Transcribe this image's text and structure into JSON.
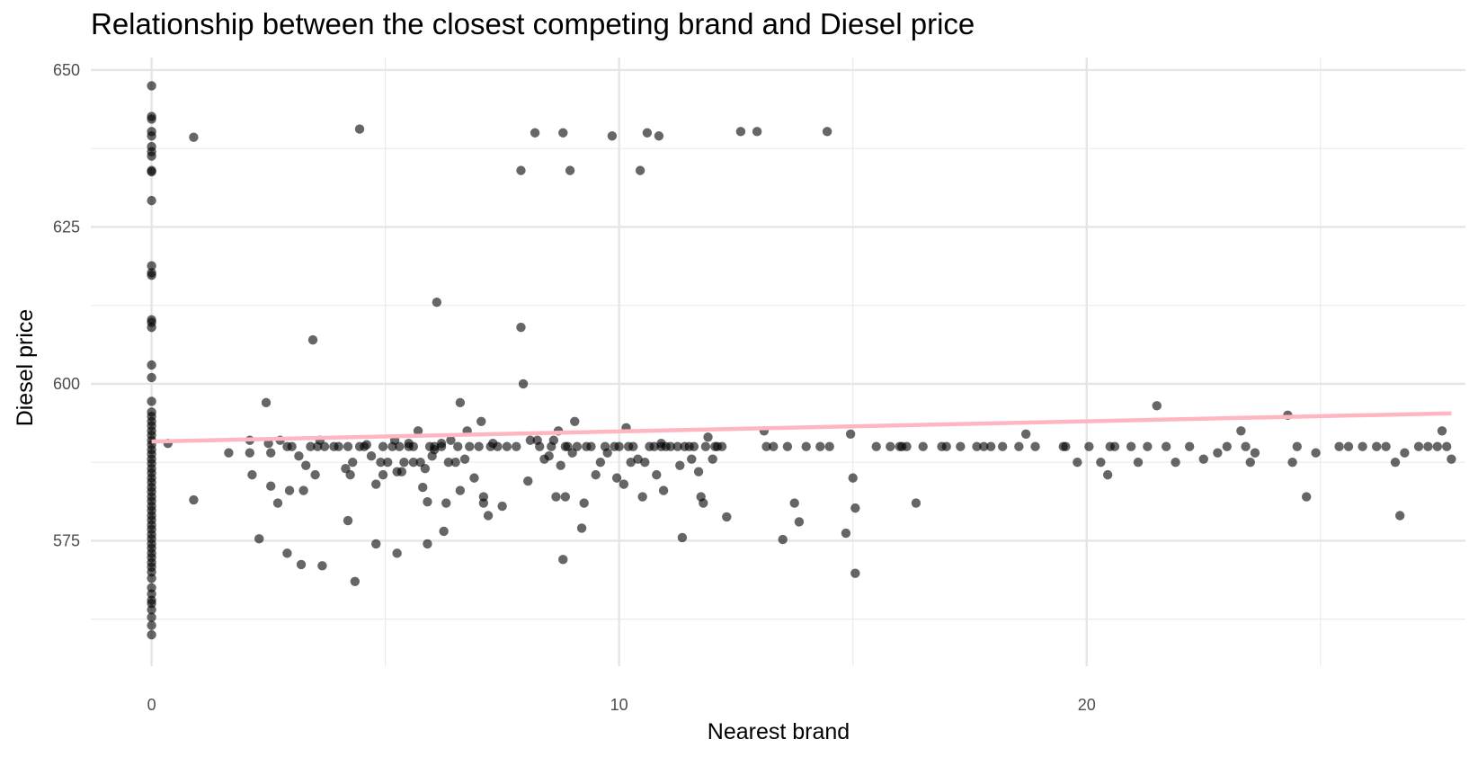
{
  "chart_data": {
    "type": "scatter",
    "title": "Relationship between the closest competing brand and Diesel price",
    "xlabel": "Nearest brand",
    "ylabel": "Diesel price",
    "xlim": [
      -1.3,
      28.1
    ],
    "ylim": [
      555,
      652
    ],
    "x_ticks": [
      0,
      10,
      20
    ],
    "x_tick_labels": [
      "0",
      "10",
      "20"
    ],
    "x_minor_ticks": [
      5,
      15,
      25
    ],
    "y_ticks": [
      575,
      600,
      625,
      650
    ],
    "y_tick_labels": [
      "575",
      "600",
      "625",
      "650"
    ],
    "y_minor_ticks": [
      562.5,
      587.5,
      612.5,
      637.5
    ],
    "grid": true,
    "point_color": "#000000",
    "point_opacity": 0.6,
    "trend_line": {
      "x": [
        0,
        27.8
      ],
      "y": [
        590.8,
        595.3
      ],
      "color": "#FFB6C1"
    },
    "points": [
      [
        0,
        647.5
      ],
      [
        0,
        642.6
      ],
      [
        0,
        642.2
      ],
      [
        0,
        640.2
      ],
      [
        0,
        639.5
      ],
      [
        0,
        637.8
      ],
      [
        0,
        637.0
      ],
      [
        0,
        636.3
      ],
      [
        0,
        634.0
      ],
      [
        0,
        633.8
      ],
      [
        0,
        629.2
      ],
      [
        0,
        618.8
      ],
      [
        0,
        617.7
      ],
      [
        0,
        617.3
      ],
      [
        0,
        610.2
      ],
      [
        0,
        609.8
      ],
      [
        0,
        609.0
      ],
      [
        0,
        603.0
      ],
      [
        0,
        601.0
      ],
      [
        0,
        597.2
      ],
      [
        0,
        595.5
      ],
      [
        0,
        594.8
      ],
      [
        0,
        594.0
      ],
      [
        0,
        593.3
      ],
      [
        0,
        592.5
      ],
      [
        0,
        591.8
      ],
      [
        0,
        591.0
      ],
      [
        0,
        590.3
      ],
      [
        0,
        589.5
      ],
      [
        0,
        588.8
      ],
      [
        0,
        588.0
      ],
      [
        0,
        587.3
      ],
      [
        0,
        586.5
      ],
      [
        0,
        585.8
      ],
      [
        0,
        585.0
      ],
      [
        0,
        584.3
      ],
      [
        0,
        583.5
      ],
      [
        0,
        582.8
      ],
      [
        0,
        582.0
      ],
      [
        0,
        581.3
      ],
      [
        0,
        580.5
      ],
      [
        0,
        579.8
      ],
      [
        0,
        579.0
      ],
      [
        0,
        578.3
      ],
      [
        0,
        577.5
      ],
      [
        0,
        576.8
      ],
      [
        0,
        576.0
      ],
      [
        0,
        575.3
      ],
      [
        0,
        574.5
      ],
      [
        0,
        573.8
      ],
      [
        0,
        573.0
      ],
      [
        0,
        572.3
      ],
      [
        0,
        571.5
      ],
      [
        0,
        570.8
      ],
      [
        0,
        570.0
      ],
      [
        0,
        569.0
      ],
      [
        0,
        567.5
      ],
      [
        0,
        566.5
      ],
      [
        0,
        565.5
      ],
      [
        0,
        565.0
      ],
      [
        0,
        564.0
      ],
      [
        0,
        562.8
      ],
      [
        0,
        561.5
      ],
      [
        0,
        560.0
      ],
      [
        0.35,
        590.5
      ],
      [
        0.9,
        639.3
      ],
      [
        0.9,
        581.5
      ],
      [
        1.65,
        589.0
      ],
      [
        2.1,
        591.0
      ],
      [
        2.1,
        589.0
      ],
      [
        2.15,
        585.5
      ],
      [
        2.3,
        575.3
      ],
      [
        2.45,
        597.0
      ],
      [
        2.5,
        590.5
      ],
      [
        2.55,
        589.0
      ],
      [
        2.55,
        583.7
      ],
      [
        2.7,
        581.0
      ],
      [
        2.75,
        591.0
      ],
      [
        2.9,
        590.0
      ],
      [
        2.9,
        573.0
      ],
      [
        2.95,
        583.0
      ],
      [
        3.0,
        590.0
      ],
      [
        3.15,
        588.5
      ],
      [
        3.2,
        571.2
      ],
      [
        3.25,
        583.0
      ],
      [
        3.3,
        587.0
      ],
      [
        3.4,
        590.0
      ],
      [
        3.45,
        607.0
      ],
      [
        3.5,
        585.5
      ],
      [
        3.55,
        590.0
      ],
      [
        3.6,
        591.0
      ],
      [
        3.65,
        571.0
      ],
      [
        3.7,
        590.0
      ],
      [
        3.9,
        590.0
      ],
      [
        4.0,
        590.0
      ],
      [
        4.15,
        586.5
      ],
      [
        4.2,
        590.0
      ],
      [
        4.2,
        578.2
      ],
      [
        4.25,
        585.5
      ],
      [
        4.3,
        587.5
      ],
      [
        4.35,
        568.5
      ],
      [
        4.45,
        590.0
      ],
      [
        4.55,
        590.0
      ],
      [
        4.6,
        590.3
      ],
      [
        4.45,
        640.6
      ],
      [
        4.7,
        588.5
      ],
      [
        4.8,
        584.0
      ],
      [
        4.8,
        574.5
      ],
      [
        4.9,
        587.5
      ],
      [
        4.95,
        590.0
      ],
      [
        4.95,
        585.5
      ],
      [
        5.05,
        587.5
      ],
      [
        5.15,
        590.0
      ],
      [
        5.2,
        591.0
      ],
      [
        5.25,
        586.0
      ],
      [
        5.25,
        573.0
      ],
      [
        5.3,
        590.0
      ],
      [
        5.35,
        586.0
      ],
      [
        5.4,
        587.5
      ],
      [
        5.5,
        590.0
      ],
      [
        5.5,
        590.5
      ],
      [
        5.6,
        587.5
      ],
      [
        5.6,
        590.0
      ],
      [
        5.7,
        592.5
      ],
      [
        5.75,
        587.5
      ],
      [
        5.8,
        583.5
      ],
      [
        5.85,
        586.5
      ],
      [
        5.9,
        581.2
      ],
      [
        5.9,
        574.5
      ],
      [
        5.95,
        590.0
      ],
      [
        6.0,
        588.5
      ],
      [
        6.05,
        590.0
      ],
      [
        6.05,
        589.5
      ],
      [
        6.1,
        613.0
      ],
      [
        6.2,
        590.0
      ],
      [
        6.2,
        590.5
      ],
      [
        6.25,
        576.5
      ],
      [
        6.3,
        581.0
      ],
      [
        6.35,
        587.5
      ],
      [
        6.4,
        591.0
      ],
      [
        6.5,
        587.5
      ],
      [
        6.55,
        590.0
      ],
      [
        6.6,
        597.0
      ],
      [
        6.6,
        583.0
      ],
      [
        6.7,
        588.0
      ],
      [
        6.75,
        592.5
      ],
      [
        6.8,
        590.0
      ],
      [
        6.9,
        585.0
      ],
      [
        7.0,
        590.0
      ],
      [
        7.05,
        594.0
      ],
      [
        7.1,
        582.0
      ],
      [
        7.1,
        581.0
      ],
      [
        7.2,
        579.0
      ],
      [
        7.25,
        590.0
      ],
      [
        7.3,
        590.5
      ],
      [
        7.4,
        590.0
      ],
      [
        7.5,
        580.5
      ],
      [
        7.6,
        590.0
      ],
      [
        7.8,
        590.0
      ],
      [
        7.9,
        609.0
      ],
      [
        7.9,
        634.0
      ],
      [
        7.95,
        600.0
      ],
      [
        8.05,
        584.5
      ],
      [
        8.1,
        591.0
      ],
      [
        8.2,
        640.0
      ],
      [
        8.25,
        591.0
      ],
      [
        8.3,
        590.0
      ],
      [
        8.4,
        588.0
      ],
      [
        8.5,
        588.5
      ],
      [
        8.55,
        590.0
      ],
      [
        8.6,
        591.0
      ],
      [
        8.65,
        582.0
      ],
      [
        8.7,
        592.5
      ],
      [
        8.75,
        587.0
      ],
      [
        8.8,
        640.0
      ],
      [
        8.8,
        572.0
      ],
      [
        8.85,
        590.0
      ],
      [
        8.85,
        582.0
      ],
      [
        8.9,
        590.0
      ],
      [
        8.95,
        634.0
      ],
      [
        9.0,
        589.0
      ],
      [
        9.05,
        594.0
      ],
      [
        9.1,
        590.0
      ],
      [
        9.2,
        577.0
      ],
      [
        9.25,
        581.0
      ],
      [
        9.3,
        590.0
      ],
      [
        9.4,
        590.0
      ],
      [
        9.5,
        585.5
      ],
      [
        9.6,
        587.5
      ],
      [
        9.7,
        590.0
      ],
      [
        9.75,
        589.0
      ],
      [
        9.85,
        639.5
      ],
      [
        9.9,
        590.0
      ],
      [
        9.95,
        585.0
      ],
      [
        10.0,
        590.0
      ],
      [
        10.1,
        584.0
      ],
      [
        10.15,
        593.0
      ],
      [
        10.2,
        590.0
      ],
      [
        10.25,
        587.5
      ],
      [
        10.3,
        590.0
      ],
      [
        10.4,
        588.0
      ],
      [
        10.45,
        634.0
      ],
      [
        10.5,
        582.0
      ],
      [
        10.55,
        587.5
      ],
      [
        10.6,
        640.0
      ],
      [
        10.65,
        590.0
      ],
      [
        10.75,
        590.0
      ],
      [
        10.8,
        585.5
      ],
      [
        10.85,
        639.5
      ],
      [
        10.9,
        590.0
      ],
      [
        10.9,
        590.5
      ],
      [
        10.95,
        583.0
      ],
      [
        11.0,
        590.0
      ],
      [
        11.1,
        590.0
      ],
      [
        11.25,
        590.0
      ],
      [
        11.3,
        587.0
      ],
      [
        11.35,
        575.5
      ],
      [
        11.4,
        590.0
      ],
      [
        11.5,
        590.0
      ],
      [
        11.55,
        588.0
      ],
      [
        11.6,
        590.0
      ],
      [
        11.7,
        586.0
      ],
      [
        11.75,
        582.0
      ],
      [
        11.8,
        581.0
      ],
      [
        11.85,
        590.0
      ],
      [
        11.9,
        591.5
      ],
      [
        12.0,
        588.0
      ],
      [
        12.05,
        590.0
      ],
      [
        12.1,
        590.0
      ],
      [
        12.2,
        590.0
      ],
      [
        12.3,
        578.8
      ],
      [
        12.6,
        640.2
      ],
      [
        12.95,
        640.2
      ],
      [
        13.1,
        592.5
      ],
      [
        13.15,
        590.0
      ],
      [
        13.3,
        590.0
      ],
      [
        13.5,
        575.2
      ],
      [
        13.6,
        590.0
      ],
      [
        13.75,
        581.0
      ],
      [
        13.85,
        578.0
      ],
      [
        14.0,
        590.0
      ],
      [
        14.3,
        590.0
      ],
      [
        14.45,
        640.2
      ],
      [
        14.5,
        590.0
      ],
      [
        14.85,
        576.2
      ],
      [
        14.95,
        592.0
      ],
      [
        15.0,
        585.0
      ],
      [
        15.05,
        580.2
      ],
      [
        15.05,
        569.8
      ],
      [
        15.5,
        590.0
      ],
      [
        15.8,
        590.0
      ],
      [
        16.0,
        590.0
      ],
      [
        16.05,
        590.0
      ],
      [
        16.15,
        590.0
      ],
      [
        16.35,
        581.0
      ],
      [
        16.5,
        590.0
      ],
      [
        16.9,
        590.0
      ],
      [
        17.0,
        590.0
      ],
      [
        17.3,
        590.0
      ],
      [
        17.65,
        590.0
      ],
      [
        17.8,
        590.0
      ],
      [
        17.95,
        590.0
      ],
      [
        18.2,
        590.0
      ],
      [
        18.55,
        590.0
      ],
      [
        18.7,
        592.0
      ],
      [
        18.9,
        590.0
      ],
      [
        19.5,
        590.0
      ],
      [
        19.55,
        590.0
      ],
      [
        19.8,
        587.5
      ],
      [
        20.05,
        590.0
      ],
      [
        20.3,
        587.5
      ],
      [
        20.45,
        585.5
      ],
      [
        20.5,
        590.0
      ],
      [
        20.6,
        590.0
      ],
      [
        20.95,
        590.0
      ],
      [
        21.1,
        587.5
      ],
      [
        21.3,
        590.0
      ],
      [
        21.5,
        596.5
      ],
      [
        21.7,
        590.0
      ],
      [
        21.9,
        587.5
      ],
      [
        22.2,
        590.0
      ],
      [
        22.5,
        588.0
      ],
      [
        22.8,
        589.0
      ],
      [
        23.0,
        590.0
      ],
      [
        23.3,
        592.5
      ],
      [
        23.4,
        590.0
      ],
      [
        23.5,
        587.5
      ],
      [
        23.6,
        589.0
      ],
      [
        24.3,
        595.0
      ],
      [
        24.4,
        587.5
      ],
      [
        24.5,
        590.0
      ],
      [
        24.7,
        582.0
      ],
      [
        24.9,
        589.0
      ],
      [
        25.4,
        590.0
      ],
      [
        25.6,
        590.0
      ],
      [
        25.9,
        590.0
      ],
      [
        26.2,
        590.0
      ],
      [
        26.4,
        590.0
      ],
      [
        27.1,
        590.0
      ],
      [
        26.6,
        587.5
      ],
      [
        26.7,
        579.0
      ],
      [
        26.8,
        589.0
      ],
      [
        27.3,
        590.0
      ],
      [
        27.5,
        590.0
      ],
      [
        27.6,
        592.5
      ],
      [
        27.7,
        590.0
      ],
      [
        27.8,
        588.0
      ]
    ]
  }
}
